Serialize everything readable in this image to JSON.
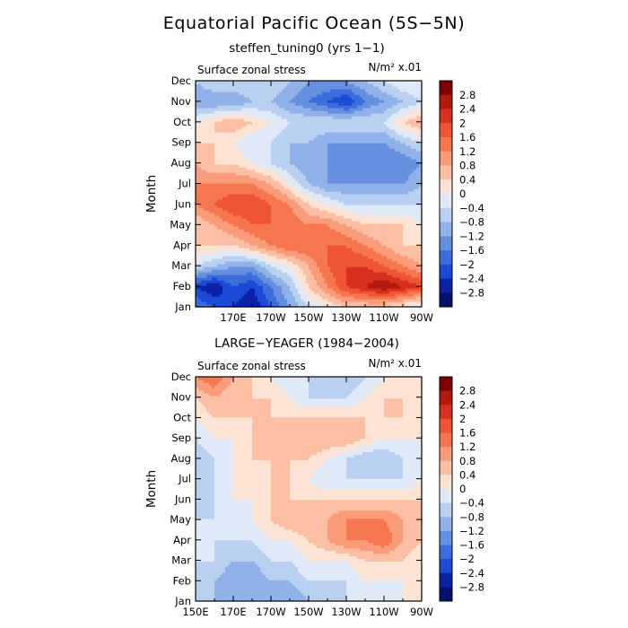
{
  "figure": {
    "title": "Equatorial Pacific Ocean (5S−5N)"
  },
  "colorbar": {
    "levels": [
      -3.2,
      -2.8,
      -2.4,
      -2.0,
      -1.6,
      -1.2,
      -0.8,
      -0.4,
      0.0,
      0.4,
      0.8,
      1.2,
      1.6,
      2.0,
      2.4,
      2.8,
      3.2
    ],
    "labels": [
      "2.8",
      "2.4",
      "2",
      "1.6",
      "1.2",
      "0.8",
      "0.4",
      "0",
      "−0.4",
      "−0.8",
      "−1.2",
      "−1.6",
      "−2",
      "−2.4",
      "−2.8"
    ],
    "colors_top_to_bottom": [
      "#7f0000",
      "#b21a0e",
      "#d73021",
      "#ee5535",
      "#f6764f",
      "#fa9c7a",
      "#fcbfa4",
      "#fde3d3",
      "#dfe9f7",
      "#bad0f0",
      "#91b1e9",
      "#6590e0",
      "#3d6ddd",
      "#1c49d6",
      "#0b22a6",
      "#06126e"
    ]
  },
  "chart_data": [
    {
      "type": "heatmap",
      "title": "steffen_tuning0 (yrs 1−1)",
      "field_label": "Surface zonal stress",
      "units_label": "N/m² x.01",
      "ylabel": "Month",
      "x_ticks": [
        "170E",
        "170W",
        "150W",
        "130W",
        "110W",
        "90W"
      ],
      "y_ticks": [
        "Jan",
        "Feb",
        "Mar",
        "Apr",
        "May",
        "Jun",
        "Jul",
        "Aug",
        "Sep",
        "Oct",
        "Nov",
        "Dec"
      ],
      "x": [
        150,
        160,
        170,
        180,
        190,
        200,
        210,
        220,
        230,
        240,
        250,
        260,
        270
      ],
      "y": [
        "Jan",
        "Feb",
        "Mar",
        "Apr",
        "May",
        "Jun",
        "Jul",
        "Aug",
        "Sep",
        "Oct",
        "Nov",
        "Dec"
      ],
      "values": [
        [
          -1.6,
          -2.0,
          -2.4,
          -2.8,
          -2.0,
          -1.2,
          -0.4,
          0.0,
          0.4,
          0.4,
          0.4,
          0.0,
          -0.4
        ],
        [
          -2.4,
          -2.8,
          -2.0,
          -2.4,
          -1.6,
          -0.8,
          0.4,
          1.2,
          2.0,
          2.4,
          2.8,
          2.4,
          2.0
        ],
        [
          -0.4,
          -0.8,
          -1.2,
          -1.2,
          -0.4,
          0.0,
          0.8,
          1.6,
          2.0,
          2.0,
          1.6,
          1.2,
          0.8
        ],
        [
          0.4,
          0.4,
          0.4,
          0.8,
          1.2,
          1.6,
          1.6,
          1.6,
          1.6,
          1.2,
          0.8,
          0.4,
          0.4
        ],
        [
          0.4,
          0.8,
          1.2,
          1.6,
          1.6,
          1.6,
          1.2,
          1.2,
          0.8,
          0.4,
          0.4,
          0.4,
          0.0
        ],
        [
          1.2,
          1.6,
          2.0,
          2.0,
          1.6,
          1.2,
          0.4,
          0.0,
          -0.4,
          -0.4,
          -0.4,
          -0.4,
          -0.4
        ],
        [
          1.2,
          1.2,
          1.2,
          1.2,
          0.8,
          0.0,
          -0.8,
          -1.2,
          -1.2,
          -1.2,
          -1.2,
          -1.2,
          -0.8
        ],
        [
          0.8,
          0.4,
          0.4,
          0.0,
          -0.4,
          -0.8,
          -1.2,
          -1.2,
          -1.6,
          -1.6,
          -1.6,
          -1.6,
          -1.2
        ],
        [
          0.4,
          0.4,
          0.0,
          -0.4,
          -0.4,
          -0.8,
          -0.8,
          -1.2,
          -1.2,
          -1.2,
          -1.2,
          -0.8,
          -0.4
        ],
        [
          0.0,
          0.4,
          0.8,
          0.4,
          0.0,
          -0.4,
          -0.4,
          -0.4,
          -0.4,
          -0.4,
          -0.4,
          0.4,
          0.8
        ],
        [
          -1.2,
          -1.2,
          -1.2,
          -0.8,
          -0.8,
          -1.2,
          -1.6,
          -2.0,
          -2.4,
          -1.6,
          -1.2,
          -0.8,
          -0.4
        ],
        [
          -0.8,
          -0.4,
          -0.4,
          -0.4,
          -0.4,
          -0.8,
          -1.2,
          -1.2,
          -1.2,
          -0.8,
          -0.4,
          0.0,
          0.0
        ]
      ]
    },
    {
      "type": "heatmap",
      "title": "LARGE−YEAGER (1984−2004)",
      "field_label": "Surface zonal stress",
      "units_label": "N/m² x.01",
      "ylabel": "Month",
      "x_ticks": [
        "150E",
        "170E",
        "170W",
        "150W",
        "130W",
        "110W",
        "90W"
      ],
      "y_ticks": [
        "Jan",
        "Feb",
        "Mar",
        "Apr",
        "May",
        "Jun",
        "Jul",
        "Aug",
        "Sep",
        "Oct",
        "Nov",
        "Dec"
      ],
      "x": [
        150,
        160,
        170,
        180,
        190,
        200,
        210,
        220,
        230,
        240,
        250,
        260,
        270
      ],
      "y": [
        "Jan",
        "Feb",
        "Mar",
        "Apr",
        "May",
        "Jun",
        "Jul",
        "Aug",
        "Sep",
        "Oct",
        "Nov",
        "Dec"
      ],
      "values": [
        [
          -0.4,
          -0.8,
          -0.8,
          -1.2,
          -1.2,
          -1.2,
          -0.8,
          -0.8,
          -0.4,
          -0.4,
          -0.4,
          0.0,
          0.0
        ],
        [
          -0.4,
          -0.8,
          -1.2,
          -1.2,
          -0.8,
          -0.8,
          -0.4,
          -0.4,
          -0.4,
          0.0,
          0.0,
          0.0,
          0.0
        ],
        [
          -0.4,
          -0.4,
          -0.8,
          -0.8,
          -0.4,
          -0.4,
          0.0,
          0.0,
          0.0,
          0.4,
          0.4,
          0.4,
          0.0
        ],
        [
          -0.4,
          -0.4,
          -0.4,
          -0.4,
          0.0,
          0.0,
          0.4,
          0.8,
          1.2,
          1.2,
          1.6,
          0.8,
          0.4
        ],
        [
          -0.4,
          -0.4,
          -0.4,
          0.0,
          0.4,
          0.8,
          0.8,
          0.8,
          1.2,
          1.2,
          1.2,
          0.8,
          0.4
        ],
        [
          -0.8,
          -0.4,
          0.0,
          0.0,
          0.4,
          0.4,
          0.4,
          0.4,
          0.4,
          0.4,
          0.4,
          0.4,
          0.4
        ],
        [
          -0.8,
          -0.4,
          0.0,
          0.0,
          0.4,
          0.4,
          0.0,
          -0.4,
          -0.4,
          -0.4,
          -0.4,
          -0.4,
          0.0
        ],
        [
          -0.8,
          -0.4,
          0.0,
          0.4,
          0.4,
          0.4,
          0.4,
          0.0,
          -0.4,
          -0.8,
          -0.8,
          -0.4,
          0.0
        ],
        [
          -0.4,
          0.0,
          0.0,
          0.4,
          0.4,
          0.4,
          0.8,
          0.8,
          0.8,
          0.4,
          0.0,
          0.0,
          0.0
        ],
        [
          0.0,
          0.4,
          0.4,
          0.4,
          0.4,
          0.4,
          0.4,
          0.4,
          0.4,
          0.4,
          0.4,
          0.4,
          0.0
        ],
        [
          0.4,
          0.8,
          0.4,
          0.4,
          0.4,
          0.0,
          -0.4,
          -0.4,
          -0.4,
          0.0,
          0.4,
          0.4,
          0.0
        ],
        [
          1.2,
          1.6,
          0.8,
          0.4,
          0.0,
          -0.4,
          -0.4,
          -0.8,
          -0.8,
          -0.4,
          0.0,
          0.4,
          0.0
        ]
      ]
    }
  ]
}
